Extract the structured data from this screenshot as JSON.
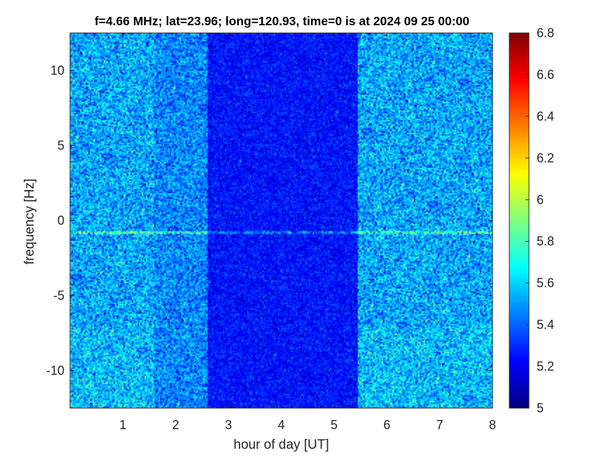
{
  "chart_data": {
    "type": "heatmap",
    "title": "f=4.66 MHz;  lat=23.96; long=120.93, time=0 is at 2024 09 25 00:00",
    "xlabel": "hour of day [UT]",
    "ylabel": "frequency [Hz]",
    "xlim": [
      0,
      8
    ],
    "ylim": [
      -12.5,
      12.5
    ],
    "x_ticks": [
      "1",
      "2",
      "3",
      "4",
      "5",
      "6",
      "7",
      "8"
    ],
    "y_ticks": [
      "-10",
      "-5",
      "0",
      "5",
      "10"
    ],
    "colorbar": {
      "min": 5,
      "max": 6.8,
      "colormap": "jet",
      "ticks": [
        "5",
        "5.2",
        "5.4",
        "5.6",
        "5.8",
        "6",
        "6.2",
        "6.4",
        "6.6",
        "6.8"
      ]
    },
    "segments": [
      {
        "x_start": 0,
        "x_end": 1.6,
        "level": "high"
      },
      {
        "x_start": 1.6,
        "x_end": 2.6,
        "level": "medium"
      },
      {
        "x_start": 2.6,
        "x_end": 5.45,
        "level": "low"
      },
      {
        "x_start": 5.45,
        "x_end": 8,
        "level": "high"
      }
    ],
    "features": [
      {
        "type": "horizontal_line",
        "y": -0.8,
        "note": "narrow carrier line near 0 Hz"
      }
    ]
  },
  "colors": {
    "background": "#ffffff",
    "axis": "#262626"
  }
}
